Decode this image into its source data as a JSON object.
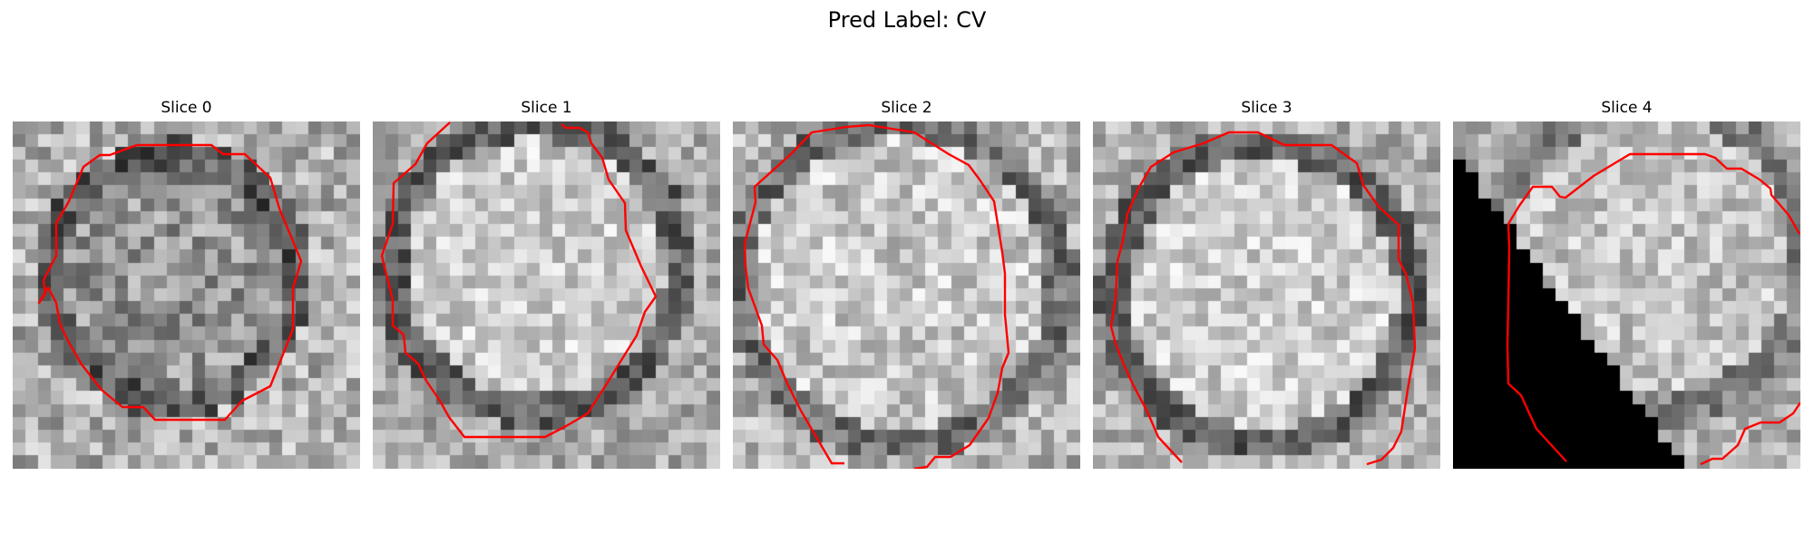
{
  "figure": {
    "title": "Pred Label: CV",
    "contour_color": "#ff0000"
  },
  "slices": [
    {
      "title": "Slice 0"
    },
    {
      "title": "Slice 1"
    },
    {
      "title": "Slice 2"
    },
    {
      "title": "Slice 3"
    },
    {
      "title": "Slice 4"
    }
  ]
}
